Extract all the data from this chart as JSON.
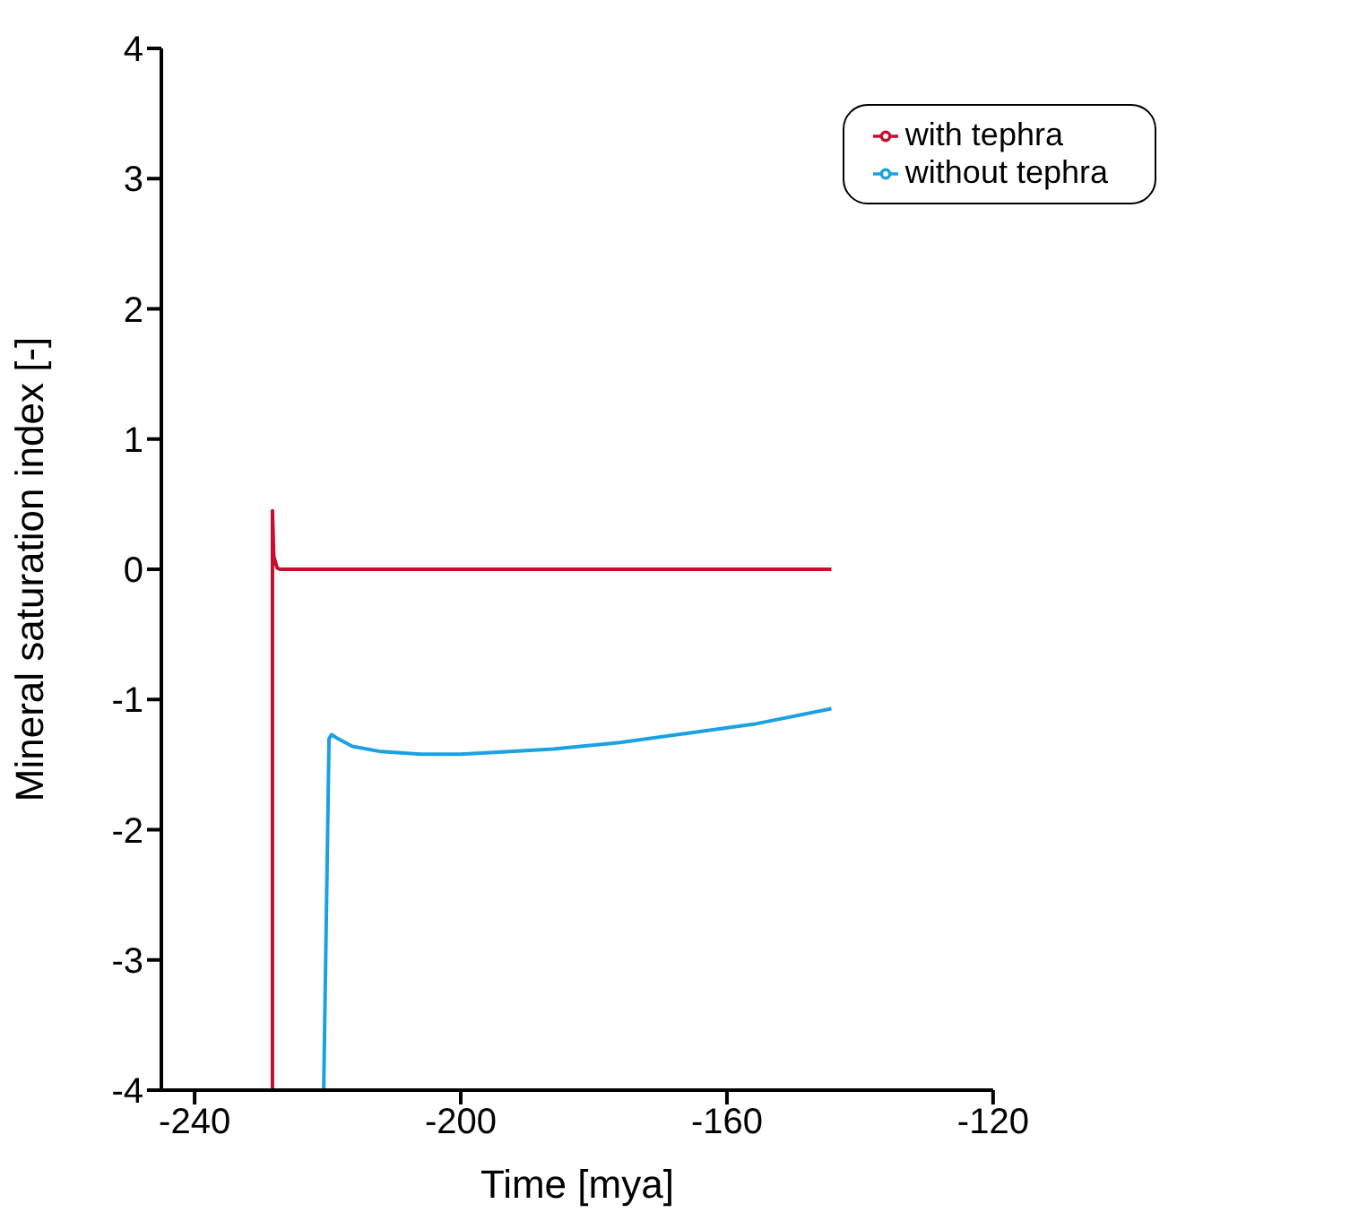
{
  "chart_data": {
    "type": "line",
    "xlabel": "Time [mya]",
    "ylabel": "Mineral saturation index [-]",
    "xlim": [
      -245,
      -120
    ],
    "xticks": [
      -240,
      -200,
      -160,
      -120
    ],
    "ylim": [
      -4,
      4
    ],
    "yticks": [
      -4,
      -3,
      -2,
      -1,
      0,
      1,
      2,
      3,
      4
    ],
    "grid": false,
    "legend": "top right",
    "marker": "none",
    "line_style": "solid",
    "series": [
      {
        "name": "with tephra",
        "color": "#c8102e",
        "x": [
          -228.3,
          -228.3,
          -228.1,
          -227.6,
          -227.2,
          -200,
          -170,
          -144.3
        ],
        "values": [
          -4,
          0.45,
          0.1,
          0.01,
          0,
          0,
          0,
          0
        ]
      },
      {
        "name": "without tephra",
        "color": "#1ba1e2",
        "x": [
          -220.6,
          -219.8,
          -219.4,
          -218.5,
          -216.3,
          -212,
          -206,
          -200,
          -196.2,
          -186.1,
          -176.1,
          -166,
          -156,
          -144.3
        ],
        "values": [
          -4,
          -1.3,
          -1.27,
          -1.3,
          -1.36,
          -1.4,
          -1.42,
          -1.42,
          -1.41,
          -1.38,
          -1.33,
          -1.26,
          -1.19,
          -1.07
        ]
      }
    ]
  }
}
